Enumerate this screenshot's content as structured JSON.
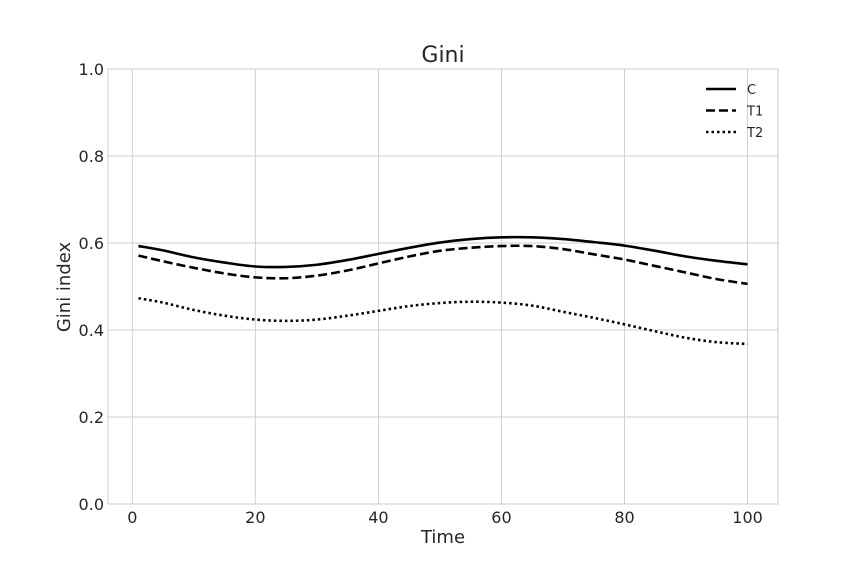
{
  "chart_data": {
    "type": "line",
    "title": "Gini",
    "xlabel": "Time",
    "ylabel": "Gini index",
    "xlim": [
      -3.95,
      104.95
    ],
    "ylim": [
      0.0,
      1.0
    ],
    "xticks": [
      0,
      20,
      40,
      60,
      80,
      100
    ],
    "yticks": [
      0.0,
      0.2,
      0.4,
      0.6,
      0.8,
      1.0
    ],
    "xtick_labels": [
      "0",
      "20",
      "40",
      "60",
      "80",
      "100"
    ],
    "ytick_labels": [
      "0.0",
      "0.2",
      "0.4",
      "0.6",
      "0.8",
      "1.0"
    ],
    "grid": true,
    "legend_position": "top-right",
    "x": [
      1,
      5,
      10,
      15,
      20,
      25,
      30,
      35,
      40,
      45,
      50,
      55,
      60,
      65,
      70,
      75,
      80,
      85,
      90,
      95,
      100
    ],
    "series": [
      {
        "name": "C",
        "style": "solid",
        "color": "#000000",
        "values": [
          0.593,
          0.583,
          0.567,
          0.555,
          0.546,
          0.545,
          0.55,
          0.561,
          0.575,
          0.589,
          0.601,
          0.609,
          0.613,
          0.613,
          0.609,
          0.602,
          0.594,
          0.582,
          0.569,
          0.559,
          0.551
        ]
      },
      {
        "name": "T1",
        "style": "dashed",
        "color": "#000000",
        "values": [
          0.571,
          0.558,
          0.543,
          0.53,
          0.521,
          0.519,
          0.525,
          0.537,
          0.553,
          0.569,
          0.582,
          0.589,
          0.593,
          0.593,
          0.586,
          0.574,
          0.562,
          0.547,
          0.532,
          0.517,
          0.506
        ]
      },
      {
        "name": "T2",
        "style": "dotted",
        "color": "#000000",
        "values": [
          0.473,
          0.463,
          0.446,
          0.433,
          0.424,
          0.421,
          0.424,
          0.433,
          0.444,
          0.455,
          0.462,
          0.465,
          0.463,
          0.456,
          0.442,
          0.428,
          0.413,
          0.397,
          0.382,
          0.372,
          0.368
        ]
      }
    ]
  }
}
